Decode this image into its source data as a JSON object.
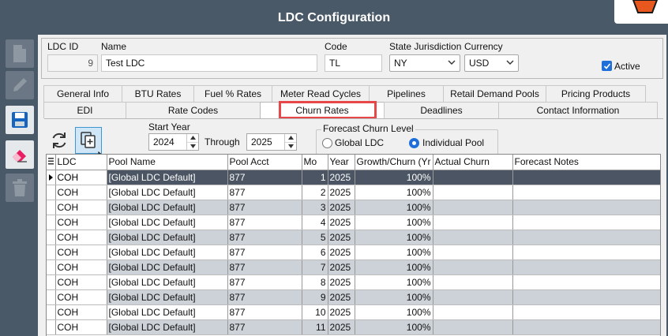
{
  "window": {
    "title": "LDC Configuration"
  },
  "sidebar": {
    "buttons": [
      "new-document",
      "edit",
      "save",
      "erase",
      "delete"
    ]
  },
  "header": {
    "ldc_id_label": "LDC ID",
    "ldc_id_value": "9",
    "name_label": "Name",
    "name_value": "Test LDC",
    "code_label": "Code",
    "code_value": "TL",
    "state_label": "State Jurisdiction",
    "state_value": "NY",
    "currency_label": "Currency",
    "currency_value": "USD",
    "active_label": "Active",
    "active_checked": true
  },
  "tabs_row1": [
    {
      "label": "General Info"
    },
    {
      "label": "BTU Rates"
    },
    {
      "label": "Fuel % Rates"
    },
    {
      "label": "Meter Read Cycles"
    },
    {
      "label": "Pipelines"
    },
    {
      "label": "Retail Demand Pools"
    },
    {
      "label": "Pricing Products"
    }
  ],
  "tabs_row2": [
    {
      "label": "EDI"
    },
    {
      "label": "Rate Codes"
    },
    {
      "label": "Churn Rates"
    },
    {
      "label": "Deadlines"
    },
    {
      "label": "Contact Information"
    }
  ],
  "active_tab": "Churn Rates",
  "churn": {
    "start_year_label": "Start Year",
    "start_year": "2024",
    "through_label": "Through",
    "through_year": "2025",
    "forecast_label": "Forecast Churn Level",
    "option_global": "Global LDC",
    "option_individual": "Individual Pool",
    "selected_option": "Individual Pool"
  },
  "grid": {
    "columns": [
      "LDC",
      "Pool Name",
      "Pool Acct",
      "Mo",
      "Year",
      "Growth/Churn (Yr",
      "Actual Churn",
      "Forecast Notes"
    ],
    "rows": [
      [
        "COH",
        "[Global LDC Default]",
        "877",
        "1",
        "2025",
        "100%",
        "",
        ""
      ],
      [
        "COH",
        "[Global LDC Default]",
        "877",
        "2",
        "2025",
        "100%",
        "",
        ""
      ],
      [
        "COH",
        "[Global LDC Default]",
        "877",
        "3",
        "2025",
        "100%",
        "",
        ""
      ],
      [
        "COH",
        "[Global LDC Default]",
        "877",
        "4",
        "2025",
        "100%",
        "",
        ""
      ],
      [
        "COH",
        "[Global LDC Default]",
        "877",
        "5",
        "2025",
        "100%",
        "",
        ""
      ],
      [
        "COH",
        "[Global LDC Default]",
        "877",
        "6",
        "2025",
        "100%",
        "",
        ""
      ],
      [
        "COH",
        "[Global LDC Default]",
        "877",
        "7",
        "2025",
        "100%",
        "",
        ""
      ],
      [
        "COH",
        "[Global LDC Default]",
        "877",
        "8",
        "2025",
        "100%",
        "",
        ""
      ],
      [
        "COH",
        "[Global LDC Default]",
        "877",
        "9",
        "2025",
        "100%",
        "",
        ""
      ],
      [
        "COH",
        "[Global LDC Default]",
        "877",
        "10",
        "2025",
        "100%",
        "",
        ""
      ],
      [
        "COH",
        "[Global LDC Default]",
        "877",
        "11",
        "2025",
        "100%",
        "",
        ""
      ]
    ],
    "selected_row": 0
  },
  "colors": {
    "chrome": "#4a5968",
    "selected_row": "#4b5563",
    "alt_row": "#cdd2d8",
    "highlight": "#e8474a",
    "accent": "#1e6fd9"
  }
}
